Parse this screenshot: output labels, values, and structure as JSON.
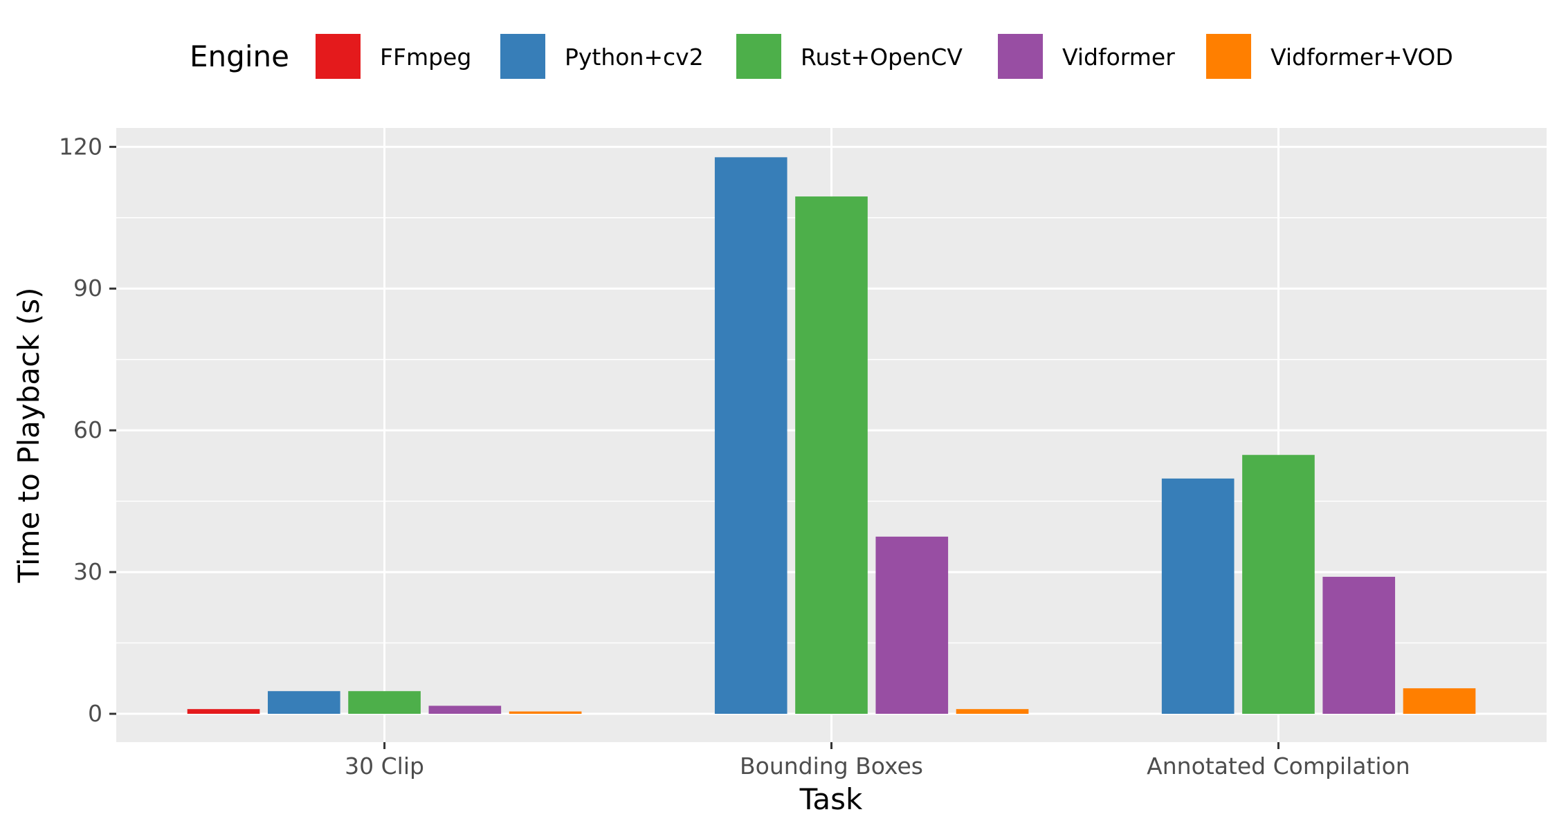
{
  "chart_data": {
    "type": "bar",
    "xlabel": "Task",
    "ylabel": "Time to Playback (s)",
    "ylim": [
      -6,
      124
    ],
    "yticks": [
      0,
      30,
      60,
      90,
      120
    ],
    "grid": true,
    "legend": {
      "title": "Engine",
      "position": "top"
    },
    "categories": [
      "30 Clip",
      "Bounding Boxes",
      "Annotated Compilation"
    ],
    "series": [
      {
        "name": "FFmpeg",
        "color": "#e41a1c",
        "values": [
          1.0,
          null,
          null
        ]
      },
      {
        "name": "Python+cv2",
        "color": "#377eb8",
        "values": [
          4.8,
          117.8,
          49.8
        ]
      },
      {
        "name": "Rust+OpenCV",
        "color": "#4daf4a",
        "values": [
          4.8,
          109.5,
          54.8
        ]
      },
      {
        "name": "Vidformer",
        "color": "#984ea3",
        "values": [
          1.7,
          37.5,
          29.0
        ]
      },
      {
        "name": "Vidformer+VOD",
        "color": "#ff7f00",
        "values": [
          0.5,
          1.0,
          5.4
        ]
      }
    ]
  }
}
